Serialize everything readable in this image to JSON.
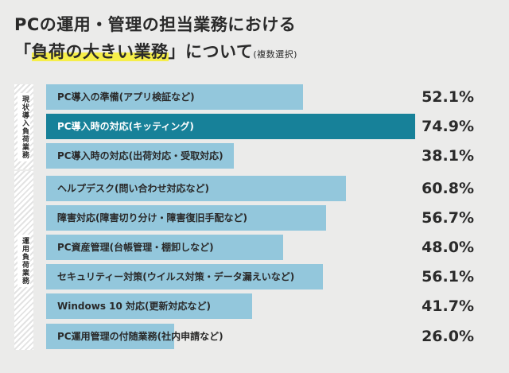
{
  "title": {
    "line1": "PCの運用・管理の担当業務における",
    "line2_open": "「",
    "line2_highlight": "負荷の大きい業務",
    "line2_close": "」について",
    "note": "(複数選択)"
  },
  "sections": [
    {
      "label": "現状導入負荷業務"
    },
    {
      "label": "運用負荷業務"
    }
  ],
  "colors": {
    "bar": "#93c7dc",
    "bar_highlight": "#178199",
    "text_on_highlight": "#ffffff",
    "highlight_marker": "#f6ee4a"
  },
  "chart_data": {
    "type": "bar",
    "orientation": "horizontal",
    "categories": [
      "PC導入の準備(アプリ検証など)",
      "PC導入時の対応(キッティング)",
      "PC導入時の対応(出荷対応・受取対応)",
      "ヘルプデスク(問い合わせ対応など)",
      "障害対応(障害切り分け・障害復旧手配など)",
      "PC資産管理(台帳管理・棚卸しなど)",
      "セキュリティー対策(ウイルス対策・データ漏えいなど)",
      "Windows 10 対応(更新対応など)",
      "PC運用管理の付随業務(社内申請など)"
    ],
    "values": [
      52.1,
      74.9,
      38.1,
      60.8,
      56.7,
      48.0,
      56.1,
      41.7,
      26.0
    ],
    "value_labels": [
      "52.1%",
      "74.9%",
      "38.1%",
      "60.8%",
      "56.7%",
      "48.0%",
      "56.1%",
      "41.7%",
      "26.0%"
    ],
    "highlight_index": 1,
    "section_sizes": [
      3,
      6
    ],
    "xlim": [
      0,
      80
    ]
  }
}
